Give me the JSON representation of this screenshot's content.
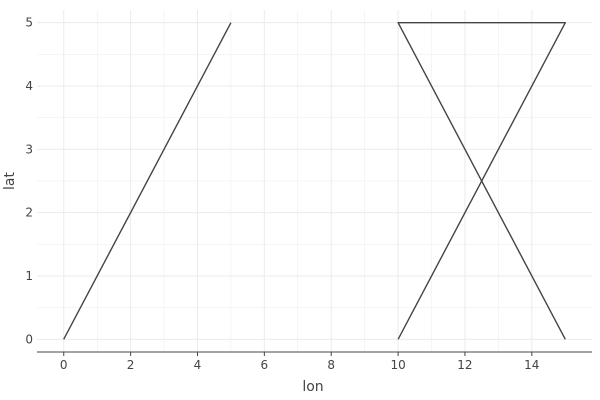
{
  "chart_data": {
    "type": "line",
    "title": "",
    "xlabel": "lon",
    "ylabel": "lat",
    "xlim": [
      -0.8,
      15.8
    ],
    "ylim": [
      -0.2,
      5.2
    ],
    "x_ticks": [
      0,
      2,
      4,
      6,
      8,
      10,
      12,
      14
    ],
    "y_ticks": [
      0,
      1,
      2,
      3,
      4,
      5
    ],
    "grid": true,
    "legend": "none",
    "series": [
      {
        "x": [
          0,
          5
        ],
        "y": [
          0,
          5
        ]
      },
      {
        "x": [
          10,
          15,
          10,
          15
        ],
        "y": [
          0,
          5,
          5,
          0
        ]
      }
    ],
    "colors": {
      "line": "#444444",
      "grid": "#ebebeb",
      "axis_line": "#444444",
      "tick_text": "#444444"
    }
  }
}
